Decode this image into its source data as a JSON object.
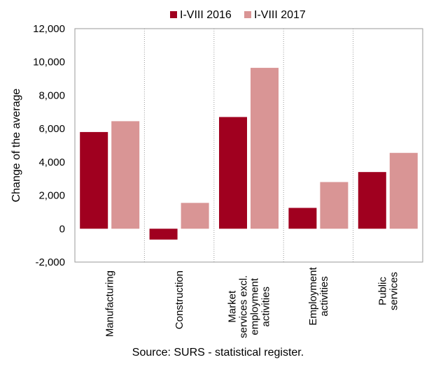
{
  "chart_data": {
    "type": "bar",
    "title": "",
    "ylabel": "Change of the average",
    "xlabel": "",
    "ylim": [
      -2000,
      12000
    ],
    "yticks": [
      -2000,
      0,
      2000,
      4000,
      6000,
      8000,
      10000,
      12000
    ],
    "ytick_labels": [
      "-2,000",
      "0",
      "2,000",
      "4,000",
      "6,000",
      "8,000",
      "10,000",
      "12,000"
    ],
    "categories": [
      [
        "Manufacturing"
      ],
      [
        "Construction"
      ],
      [
        "Market",
        "services excl.",
        "employment",
        "activities"
      ],
      [
        "Employment",
        "activities"
      ],
      [
        "Public",
        "services"
      ]
    ],
    "series": [
      {
        "name": "I-VIII 2016",
        "color": "#a0001f",
        "values": [
          5800,
          -650,
          6700,
          1250,
          3400
        ]
      },
      {
        "name": "I-VIII 2017",
        "color": "#d99595",
        "values": [
          6450,
          1550,
          9650,
          2800,
          4550
        ]
      }
    ],
    "legend_position": "top",
    "grid": "dotted vertical category separators",
    "source": "Source: SURS - statistical register."
  }
}
